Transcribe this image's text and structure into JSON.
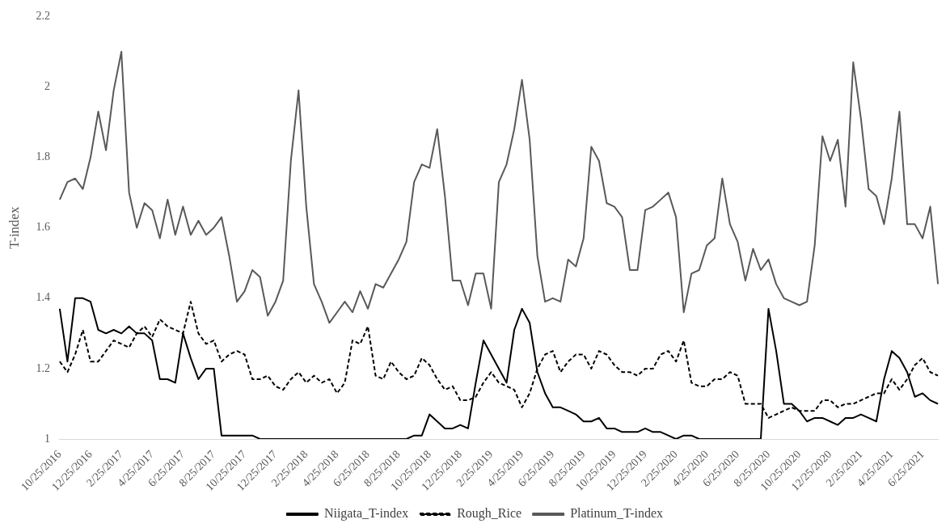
{
  "chart_data": {
    "type": "line",
    "ylabel": "T-index",
    "categories": [
      "10/25/2016",
      null,
      null,
      null,
      "12/25/2016",
      null,
      null,
      null,
      "2/25/2017",
      null,
      null,
      null,
      "4/25/2017",
      null,
      null,
      null,
      "6/25/2017",
      null,
      null,
      null,
      "8/25/2017",
      null,
      null,
      null,
      "10/25/2017",
      null,
      null,
      null,
      "12/25/2017",
      null,
      null,
      null,
      "2/25/2018",
      null,
      null,
      null,
      "4/25/2018",
      null,
      null,
      null,
      "6/25/2018",
      null,
      null,
      null,
      "8/25/2018",
      null,
      null,
      null,
      "10/25/2018",
      null,
      null,
      null,
      "12/25/2018",
      null,
      null,
      null,
      "2/25/2019",
      null,
      null,
      null,
      "4/25/2019",
      null,
      null,
      null,
      "6/25/2019",
      null,
      null,
      null,
      "8/25/2019",
      null,
      null,
      null,
      "10/25/2019",
      null,
      null,
      null,
      "12/25/2019",
      null,
      null,
      null,
      "2/25/2020",
      null,
      null,
      null,
      "4/25/2020",
      null,
      null,
      null,
      "6/25/2020",
      null,
      null,
      null,
      "8/25/2020",
      null,
      null,
      null,
      "10/25/2020",
      null,
      null,
      null,
      "12/25/2020",
      null,
      null,
      null,
      "2/25/2021",
      null,
      null,
      null,
      "4/25/2021",
      null,
      null,
      null,
      "6/25/2021",
      null,
      null
    ],
    "series": [
      {
        "name": "Niigata_T-index",
        "color": "#000000",
        "line_style": "solid",
        "values": [
          1.37,
          1.22,
          1.4,
          1.4,
          1.39,
          1.31,
          1.3,
          1.31,
          1.3,
          1.32,
          1.3,
          1.3,
          1.28,
          1.17,
          1.17,
          1.16,
          1.3,
          1.23,
          1.17,
          1.2,
          1.2,
          1.01,
          1.01,
          1.01,
          1.01,
          1.01,
          1.0,
          1.0,
          1.0,
          1.0,
          1.0,
          1.0,
          1.0,
          1.0,
          1.0,
          1.0,
          1.0,
          1.0,
          1.0,
          1.0,
          1.0,
          1.0,
          1.0,
          1.0,
          1.0,
          1.0,
          1.01,
          1.01,
          1.07,
          1.05,
          1.03,
          1.03,
          1.04,
          1.03,
          1.16,
          1.28,
          1.24,
          1.2,
          1.16,
          1.31,
          1.37,
          1.33,
          1.19,
          1.13,
          1.09,
          1.09,
          1.08,
          1.07,
          1.05,
          1.05,
          1.06,
          1.03,
          1.03,
          1.02,
          1.02,
          1.02,
          1.03,
          1.02,
          1.02,
          1.01,
          1.0,
          1.01,
          1.01,
          1.0,
          1.0,
          1.0,
          1.0,
          1.0,
          1.0,
          1.0,
          1.0,
          1.0,
          1.37,
          1.25,
          1.1,
          1.1,
          1.08,
          1.05,
          1.06,
          1.06,
          1.05,
          1.04,
          1.06,
          1.06,
          1.07,
          1.06,
          1.05,
          1.17,
          1.25,
          1.23,
          1.19,
          1.12,
          1.13,
          1.11,
          1.1
        ]
      },
      {
        "name": "Rough_Rice",
        "color": "#000000",
        "line_style": "dashed",
        "values": [
          1.22,
          1.19,
          1.24,
          1.31,
          1.22,
          1.22,
          1.25,
          1.28,
          1.27,
          1.26,
          1.3,
          1.32,
          1.29,
          1.34,
          1.32,
          1.31,
          1.3,
          1.39,
          1.3,
          1.27,
          1.28,
          1.22,
          1.24,
          1.25,
          1.24,
          1.17,
          1.17,
          1.18,
          1.15,
          1.14,
          1.17,
          1.19,
          1.16,
          1.18,
          1.16,
          1.17,
          1.13,
          1.16,
          1.28,
          1.27,
          1.32,
          1.18,
          1.17,
          1.22,
          1.19,
          1.17,
          1.18,
          1.23,
          1.21,
          1.17,
          1.14,
          1.15,
          1.11,
          1.11,
          1.12,
          1.16,
          1.19,
          1.16,
          1.15,
          1.14,
          1.09,
          1.13,
          1.2,
          1.24,
          1.25,
          1.19,
          1.22,
          1.24,
          1.24,
          1.2,
          1.25,
          1.24,
          1.21,
          1.19,
          1.19,
          1.18,
          1.2,
          1.2,
          1.24,
          1.25,
          1.22,
          1.28,
          1.16,
          1.15,
          1.15,
          1.17,
          1.17,
          1.19,
          1.18,
          1.1,
          1.1,
          1.1,
          1.06,
          1.07,
          1.08,
          1.09,
          1.08,
          1.08,
          1.08,
          1.11,
          1.11,
          1.09,
          1.1,
          1.1,
          1.11,
          1.12,
          1.13,
          1.13,
          1.17,
          1.14,
          1.17,
          1.21,
          1.23,
          1.19,
          1.18
        ]
      },
      {
        "name": "Platinum_T-index",
        "color": "#595959",
        "line_style": "solid",
        "values": [
          1.68,
          1.73,
          1.74,
          1.71,
          1.8,
          1.93,
          1.82,
          1.99,
          2.1,
          1.7,
          1.6,
          1.67,
          1.65,
          1.57,
          1.68,
          1.58,
          1.66,
          1.58,
          1.62,
          1.58,
          1.6,
          1.63,
          1.52,
          1.39,
          1.42,
          1.48,
          1.46,
          1.35,
          1.39,
          1.45,
          1.79,
          1.99,
          1.66,
          1.44,
          1.39,
          1.33,
          1.36,
          1.39,
          1.36,
          1.42,
          1.37,
          1.44,
          1.43,
          1.47,
          1.51,
          1.56,
          1.73,
          1.78,
          1.77,
          1.88,
          1.69,
          1.45,
          1.45,
          1.38,
          1.47,
          1.47,
          1.37,
          1.73,
          1.78,
          1.88,
          2.02,
          1.85,
          1.52,
          1.39,
          1.4,
          1.39,
          1.51,
          1.49,
          1.57,
          1.83,
          1.79,
          1.67,
          1.66,
          1.63,
          1.48,
          1.48,
          1.65,
          1.66,
          1.68,
          1.7,
          1.63,
          1.36,
          1.47,
          1.48,
          1.55,
          1.57,
          1.74,
          1.61,
          1.56,
          1.45,
          1.54,
          1.48,
          1.51,
          1.44,
          1.4,
          1.39,
          1.38,
          1.39,
          1.55,
          1.86,
          1.79,
          1.85,
          1.66,
          2.07,
          1.91,
          1.71,
          1.69,
          1.61,
          1.74,
          1.93,
          1.61,
          1.61,
          1.57,
          1.66,
          1.44
        ]
      }
    ],
    "ylim": [
      1,
      2.2
    ],
    "yticks": [
      1,
      1.2,
      1.4,
      1.6,
      1.8,
      2,
      2.2
    ],
    "grid": false,
    "legend": "bottom",
    "marker": "none"
  }
}
